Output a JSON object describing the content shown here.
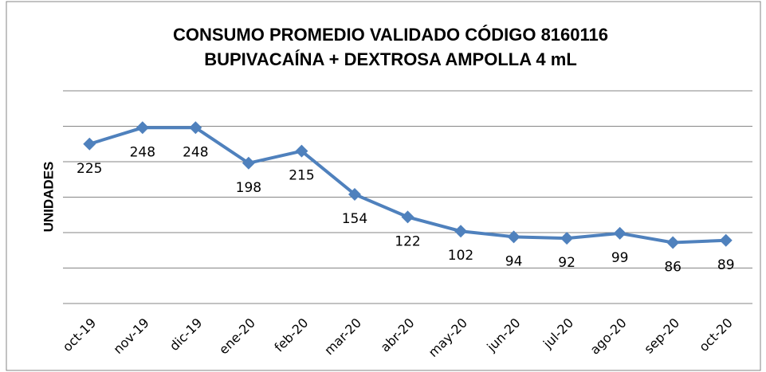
{
  "chart_data": {
    "type": "line",
    "title": [
      "CONSUMO PROMEDIO VALIDADO CÓDIGO 8160116",
      "BUPIVACAÍNA + DEXTROSA AMPOLLA 4 mL"
    ],
    "y_label": "UNIDADES",
    "categories": [
      "oct-19",
      "nov-19",
      "dic-19",
      "ene-20",
      "feb-20",
      "mar-20",
      "abr-20",
      "may-20",
      "jun-20",
      "jul-20",
      "ago-20",
      "sep-20",
      "oct-20"
    ],
    "values": [
      225,
      248,
      248,
      198,
      215,
      154,
      122,
      102,
      94,
      92,
      99,
      86,
      89
    ],
    "color": "#4f81bd",
    "ylim": [
      0,
      300
    ],
    "yticks": [
      0,
      50,
      100,
      150,
      200,
      250,
      300
    ],
    "grid": true
  }
}
